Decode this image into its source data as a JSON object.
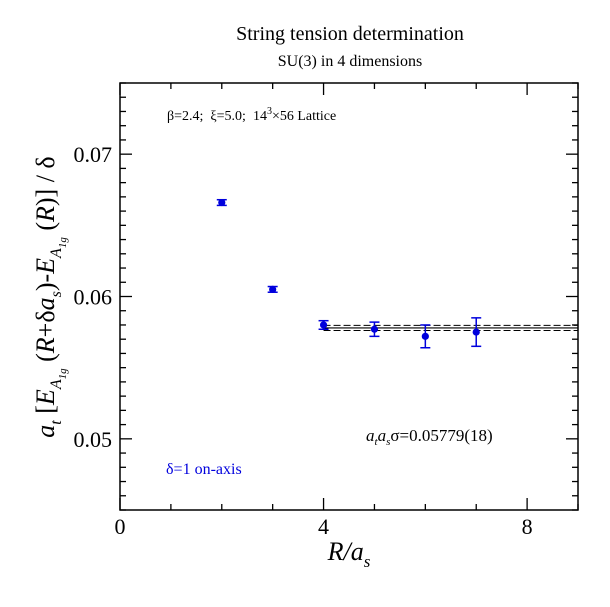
{
  "chart_data": {
    "type": "scatter",
    "title": "String tension determination",
    "subtitle": "SU(3) in 4 dimensions",
    "xlabel": "R/a_s",
    "ylabel": "a_t [E_A1g(R+δa_s)-E_A1g(R)] / δ",
    "xlim": [
      0,
      9
    ],
    "ylim": [
      0.045,
      0.075
    ],
    "x_major_ticks": [
      0,
      4,
      8
    ],
    "x_tick_labels": [
      "0",
      "4",
      "8"
    ],
    "y_major_ticks": [
      0.05,
      0.06,
      0.07
    ],
    "y_tick_labels": [
      "0.05",
      "0.06",
      "0.07"
    ],
    "grid": false,
    "legend_position": "bottom-left",
    "series": [
      {
        "name": "δ=1 on-axis",
        "color": "#0000dd",
        "x": [
          2,
          3,
          4,
          5,
          6,
          7
        ],
        "y": [
          0.0666,
          0.0605,
          0.058,
          0.0577,
          0.0572,
          0.0575
        ],
        "yerr": [
          0.0002,
          0.0002,
          0.0003,
          0.0005,
          0.0008,
          0.001
        ]
      }
    ],
    "fit": {
      "value": 0.05779,
      "error": 0.00018,
      "x_range": [
        4,
        9
      ],
      "label": "σ=0.05779(18)"
    },
    "annotations": {
      "lattice_beta": "β=2.4;",
      "lattice_xi": "ξ=5.0;",
      "lattice_size": "14",
      "lattice_exp": "3",
      "lattice_rest": "×56 Lattice"
    }
  }
}
